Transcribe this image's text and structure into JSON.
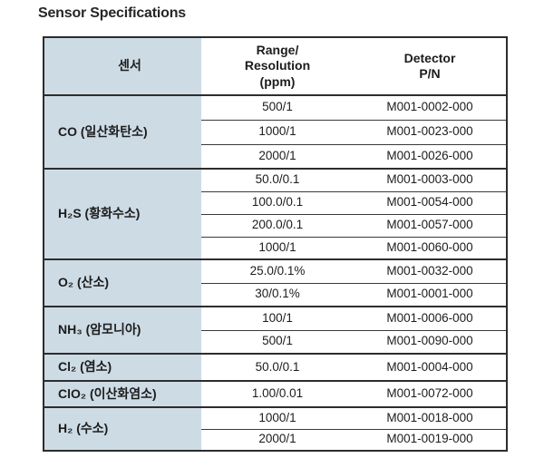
{
  "page": {
    "title": "Sensor Specifications"
  },
  "colors": {
    "sensor_column_bg": "#cddbe5",
    "border_dark": "#2d2d2d",
    "row_line": "#3a3a3a",
    "text": "#1c1c1c",
    "background": "#ffffff"
  },
  "table": {
    "header": {
      "sensor": "센서",
      "range_line1": "Range/",
      "range_line2": "Resolution",
      "range_line3": "(ppm)",
      "detector_line1": "Detector",
      "detector_line2": "P/N"
    },
    "groups": [
      {
        "sensor": "CO (일산화탄소)",
        "rows": [
          {
            "range": "500/1",
            "pn": "M001-0002-000"
          },
          {
            "range": "1000/1",
            "pn": "M001-0023-000"
          },
          {
            "range": "2000/1",
            "pn": "M001-0026-000"
          }
        ]
      },
      {
        "sensor": "H₂S (황화수소)",
        "rows": [
          {
            "range": "50.0/0.1",
            "pn": "M001-0003-000"
          },
          {
            "range": "100.0/0.1",
            "pn": "M001-0054-000"
          },
          {
            "range": "200.0/0.1",
            "pn": "M001-0057-000"
          },
          {
            "range": "1000/1",
            "pn": "M001-0060-000"
          }
        ]
      },
      {
        "sensor": "O₂ (산소)",
        "rows": [
          {
            "range": "25.0/0.1%",
            "pn": "M001-0032-000"
          },
          {
            "range": "30/0.1%",
            "pn": "M001-0001-000"
          }
        ]
      },
      {
        "sensor": "NH₃ (암모니아)",
        "rows": [
          {
            "range": "100/1",
            "pn": "M001-0006-000"
          },
          {
            "range": "500/1",
            "pn": "M001-0090-000"
          }
        ]
      },
      {
        "sensor": "Cl₂ (염소)",
        "rows": [
          {
            "range": "50.0/0.1",
            "pn": "M001-0004-000"
          }
        ]
      },
      {
        "sensor": "ClO₂ (이산화염소)",
        "rows": [
          {
            "range": "1.00/0.01",
            "pn": "M001-0072-000"
          }
        ]
      },
      {
        "sensor": "H₂ (수소)",
        "rows": [
          {
            "range": "1000/1",
            "pn": "M001-0018-000"
          },
          {
            "range": "2000/1",
            "pn": "M001-0019-000"
          }
        ]
      }
    ]
  }
}
